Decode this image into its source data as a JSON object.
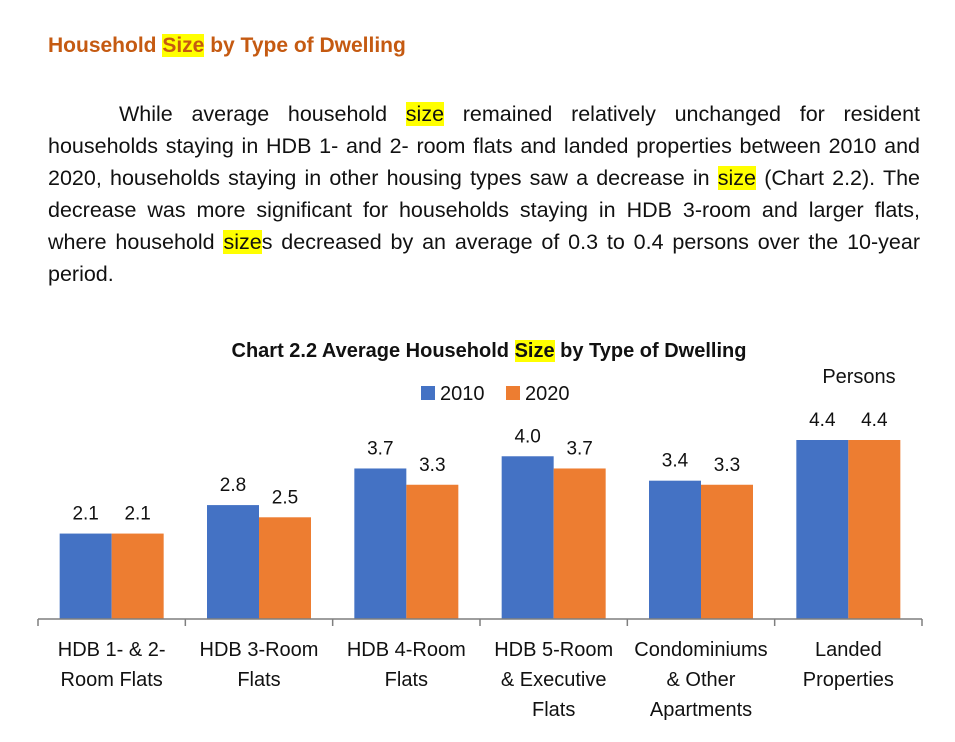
{
  "heading": {
    "pre": "Household ",
    "highlight": "Size",
    "post": " by Type of Dwelling"
  },
  "paragraph": {
    "s1": "While average household ",
    "h1": "size",
    "s2": " remained relatively unchanged for resident households staying in HDB 1- and 2- room flats and landed properties between 2010 and 2020, households staying in other housing types saw a decrease in ",
    "h2": "size",
    "s3": " (Chart 2.2). The decrease was more significant for households staying in HDB 3-room and larger flats, where household ",
    "h3": "size",
    "s4": "s decreased by an average of 0.3 to 0.4 persons over the 10-year period."
  },
  "chart_title": {
    "pre": "Chart 2.2  Average Household ",
    "highlight": "Size",
    "post": " by Type of Dwelling"
  },
  "colors": {
    "series_2010": "#4472c4",
    "series_2020": "#ed7d31",
    "heading": "#c55a11",
    "highlight": "#ffff00"
  },
  "chart_data": {
    "type": "bar",
    "unit_label": "Persons",
    "categories": [
      [
        "HDB 1- & 2-",
        "Room Flats"
      ],
      [
        "HDB 3-Room",
        "Flats"
      ],
      [
        "HDB 4-Room",
        "Flats"
      ],
      [
        "HDB 5-Room",
        "& Executive",
        "Flats"
      ],
      [
        "Condominiums",
        "& Other",
        "Apartments"
      ],
      [
        "Landed",
        "Properties"
      ]
    ],
    "series": [
      {
        "name": "2010",
        "values": [
          2.1,
          2.8,
          3.7,
          4.0,
          3.4,
          4.4
        ]
      },
      {
        "name": "2020",
        "values": [
          2.1,
          2.5,
          3.3,
          3.7,
          3.3,
          4.4
        ]
      }
    ],
    "ylim": [
      0,
      4.4
    ],
    "grid": false,
    "legend_position": "top-center",
    "data_labels": true
  }
}
